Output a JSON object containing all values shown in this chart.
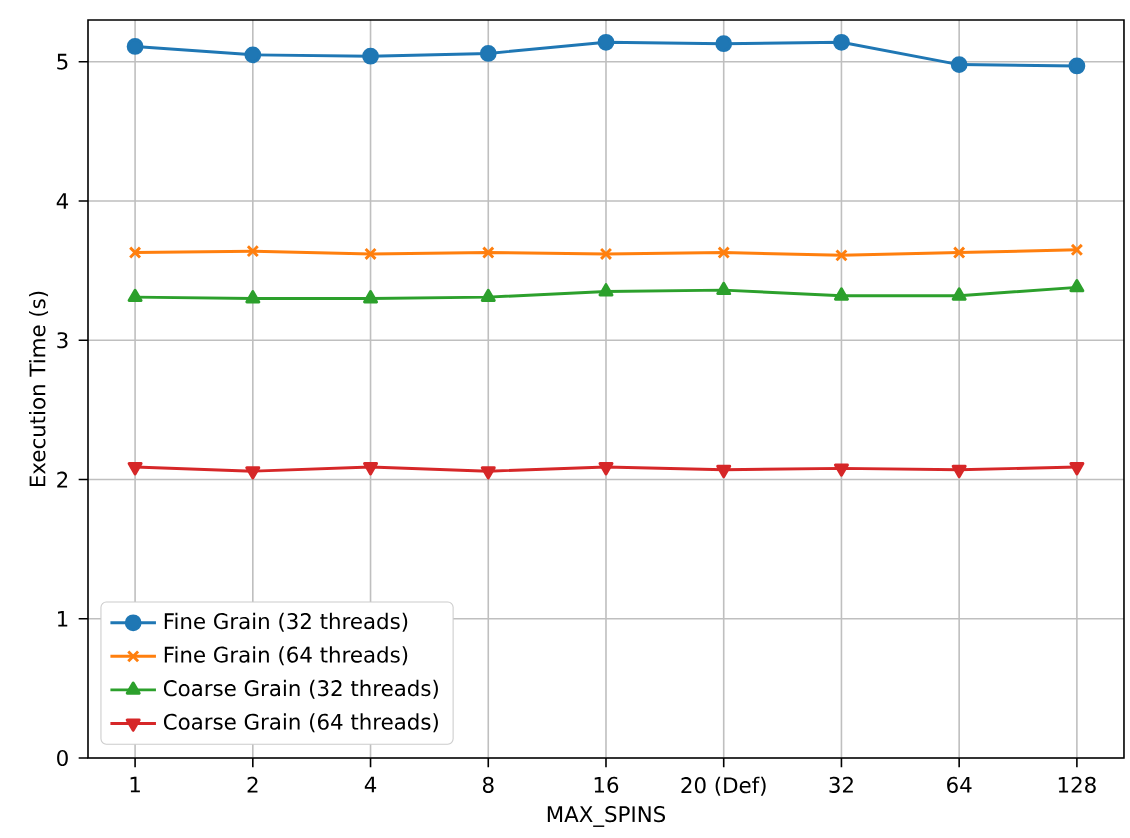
{
  "chart_data": {
    "type": "line",
    "xlabel": "MAX_SPINS",
    "ylabel": "Execution Time (s)",
    "categories": [
      "1",
      "2",
      "4",
      "8",
      "16",
      "20 (Def)",
      "32",
      "64",
      "128"
    ],
    "ylim": [
      0,
      5.3
    ],
    "yticks": [
      0,
      1,
      2,
      3,
      4,
      5
    ],
    "grid": true,
    "legend": "bottom left",
    "line_style": "solid",
    "series": [
      {
        "name": "Fine Grain (32 threads)",
        "color": "#1f77b4",
        "marker": "circle",
        "values": [
          5.11,
          5.05,
          5.04,
          5.06,
          5.14,
          5.13,
          5.14,
          4.98,
          4.97
        ]
      },
      {
        "name": "Fine Grain (64 threads)",
        "color": "#ff7f0e",
        "marker": "cross",
        "values": [
          3.63,
          3.64,
          3.62,
          3.63,
          3.62,
          3.63,
          3.61,
          3.63,
          3.65
        ]
      },
      {
        "name": "Coarse Grain (32 threads)",
        "color": "#2ca02c",
        "marker": "triangle",
        "values": [
          3.31,
          3.3,
          3.3,
          3.31,
          3.35,
          3.36,
          3.32,
          3.32,
          3.38
        ]
      },
      {
        "name": "Coarse Grain (64 threads)",
        "color": "#d62728",
        "marker": "triangle-down",
        "values": [
          2.09,
          2.06,
          2.09,
          2.06,
          2.09,
          2.07,
          2.08,
          2.07,
          2.09
        ]
      }
    ]
  }
}
